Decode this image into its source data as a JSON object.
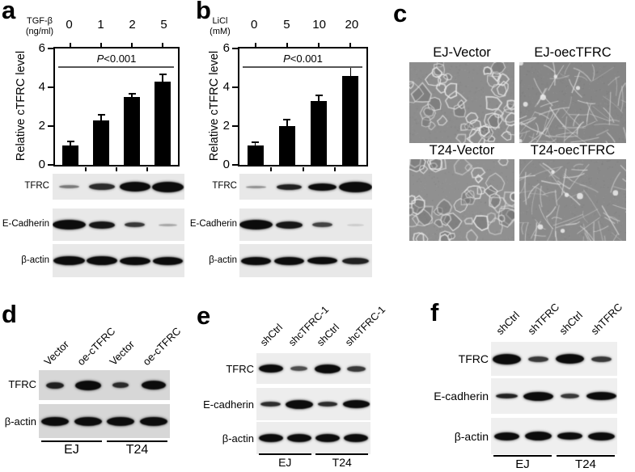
{
  "ink": "#000000",
  "figure_bg": "#ffffff",
  "significance_line_color": "#555555",
  "chart_data": [
    {
      "panel": "a",
      "type": "bar",
      "treatment": "TGF-β",
      "unit": "(ng/ml)",
      "categories": [
        "0",
        "1",
        "2",
        "5"
      ],
      "values": [
        1.0,
        2.3,
        3.5,
        4.3
      ],
      "errors": [
        0.22,
        0.3,
        0.15,
        0.35
      ],
      "title": "",
      "xlabel": "TGF-β (ng/ml)",
      "ylabel": "Relative cTFRC level",
      "ylim": [
        0,
        6
      ],
      "yticks": [
        0,
        2,
        4,
        6
      ],
      "annotation": "P<0.001",
      "bar_color": "#000000",
      "grid": false,
      "legend": "none"
    },
    {
      "panel": "b",
      "type": "bar",
      "treatment": "LiCl",
      "unit": "(mM)",
      "categories": [
        "0",
        "5",
        "10",
        "20"
      ],
      "values": [
        1.0,
        2.0,
        3.3,
        4.6
      ],
      "errors": [
        0.15,
        0.35,
        0.28,
        0.45
      ],
      "title": "",
      "xlabel": "LiCl (mM)",
      "ylabel": "Relative cTFRC level",
      "ylim": [
        0,
        6
      ],
      "yticks": [
        0,
        2,
        4,
        6
      ],
      "annotation": "P<0.001",
      "bar_color": "#000000",
      "grid": false,
      "legend": "none"
    }
  ],
  "panels": {
    "a": {
      "letter": "a",
      "strip_bg": "#e8e8e8",
      "blots": [
        {
          "label": "TFRC",
          "bands": [
            {
              "o": 0.5,
              "w": 0.62,
              "h": 4
            },
            {
              "o": 0.85,
              "w": 0.8,
              "h": 8
            },
            {
              "o": 1,
              "w": 0.95,
              "h": 12
            },
            {
              "o": 1,
              "w": 0.95,
              "h": 13
            }
          ]
        },
        {
          "label": "E-Cadherin",
          "bands": [
            {
              "o": 1,
              "w": 1.0,
              "h": 12
            },
            {
              "o": 0.95,
              "w": 0.8,
              "h": 9
            },
            {
              "o": 0.8,
              "w": 0.62,
              "h": 6
            },
            {
              "o": 0.3,
              "w": 0.55,
              "h": 3
            }
          ]
        },
        {
          "label": "β-actin",
          "bands": [
            {
              "o": 1,
              "w": 0.95,
              "h": 11
            },
            {
              "o": 1,
              "w": 0.92,
              "h": 11
            },
            {
              "o": 1,
              "w": 0.92,
              "h": 10
            },
            {
              "o": 1,
              "w": 0.92,
              "h": 10
            }
          ]
        }
      ]
    },
    "b": {
      "letter": "b",
      "strip_bg": "#e8e8e8",
      "blots": [
        {
          "label": "TFRC",
          "bands": [
            {
              "o": 0.4,
              "w": 0.6,
              "h": 3
            },
            {
              "o": 0.9,
              "w": 0.75,
              "h": 7
            },
            {
              "o": 1,
              "w": 0.85,
              "h": 9
            },
            {
              "o": 1,
              "w": 0.98,
              "h": 13
            }
          ]
        },
        {
          "label": "E-Cadherin",
          "bands": [
            {
              "o": 1,
              "w": 1.0,
              "h": 12
            },
            {
              "o": 0.95,
              "w": 0.8,
              "h": 9
            },
            {
              "o": 0.75,
              "w": 0.6,
              "h": 6
            },
            {
              "o": 0.12,
              "w": 0.5,
              "h": 3
            }
          ]
        },
        {
          "label": "β-actin",
          "bands": [
            {
              "o": 1,
              "w": 0.92,
              "h": 10
            },
            {
              "o": 1,
              "w": 0.9,
              "h": 10
            },
            {
              "o": 1,
              "w": 0.88,
              "h": 9
            },
            {
              "o": 0.9,
              "w": 0.8,
              "h": 8
            }
          ]
        }
      ]
    },
    "c": {
      "letter": "c",
      "micrographs": [
        {
          "label": "EJ-Vector",
          "morphology": "cobblestone",
          "bg": "#8d8d8d"
        },
        {
          "label": "EJ-oecTFRC",
          "morphology": "spindle",
          "bg": "#868686"
        },
        {
          "label": "T24-Vector",
          "morphology": "cobblestone",
          "bg": "#909090"
        },
        {
          "label": "T24-oecTFRC",
          "morphology": "spindle",
          "bg": "#8a8a8a"
        }
      ]
    },
    "d": {
      "letter": "d",
      "strip_bg": "#d7d7d7",
      "lanes": [
        "Vector",
        "oe-cTFRC",
        "Vector",
        "oe-cTFRC"
      ],
      "groups": [
        "EJ",
        "T24"
      ],
      "blots": [
        {
          "label": "TFRC",
          "bands": [
            {
              "o": 0.9,
              "w": 0.55,
              "h": 8
            },
            {
              "o": 1,
              "w": 0.8,
              "h": 12
            },
            {
              "o": 0.85,
              "w": 0.5,
              "h": 7
            },
            {
              "o": 1,
              "w": 0.75,
              "h": 11
            }
          ]
        },
        {
          "label": "β-actin",
          "bands": [
            {
              "o": 1,
              "w": 0.85,
              "h": 11
            },
            {
              "o": 1,
              "w": 0.85,
              "h": 11
            },
            {
              "o": 1,
              "w": 0.85,
              "h": 11
            },
            {
              "o": 1,
              "w": 0.85,
              "h": 11
            }
          ]
        }
      ]
    },
    "e": {
      "letter": "e",
      "strip_bg": "#ededed",
      "lanes": [
        "shCtrl",
        "shcTFRC-1",
        "shCtrl",
        "shcTFRC-1"
      ],
      "groups": [
        "EJ",
        "T24"
      ],
      "blots": [
        {
          "label": "TFRC",
          "bands": [
            {
              "o": 1,
              "w": 0.85,
              "h": 10
            },
            {
              "o": 0.7,
              "w": 0.6,
              "h": 6
            },
            {
              "o": 1,
              "w": 0.9,
              "h": 11
            },
            {
              "o": 0.8,
              "w": 0.65,
              "h": 7
            }
          ]
        },
        {
          "label": "E-cadherin",
          "bands": [
            {
              "o": 0.85,
              "w": 0.7,
              "h": 6
            },
            {
              "o": 1,
              "w": 0.95,
              "h": 11
            },
            {
              "o": 0.85,
              "w": 0.7,
              "h": 6
            },
            {
              "o": 1,
              "w": 0.95,
              "h": 10
            }
          ]
        },
        {
          "label": "β-actin",
          "bands": [
            {
              "o": 1,
              "w": 0.85,
              "h": 10
            },
            {
              "o": 1,
              "w": 0.85,
              "h": 10
            },
            {
              "o": 1,
              "w": 0.85,
              "h": 10
            },
            {
              "o": 1,
              "w": 0.85,
              "h": 10
            }
          ]
        }
      ]
    },
    "f": {
      "letter": "f",
      "strip_bg": "#efefef",
      "lanes": [
        "shCtrl",
        "shTFRC",
        "shCtrl",
        "shTFRC"
      ],
      "groups": [
        "EJ",
        "T24"
      ],
      "blots": [
        {
          "label": "TFRC",
          "bands": [
            {
              "o": 1,
              "w": 0.9,
              "h": 13
            },
            {
              "o": 0.8,
              "w": 0.65,
              "h": 7
            },
            {
              "o": 1,
              "w": 0.9,
              "h": 12
            },
            {
              "o": 0.8,
              "w": 0.65,
              "h": 7
            }
          ]
        },
        {
          "label": "E-cadherin",
          "bands": [
            {
              "o": 0.9,
              "w": 0.7,
              "h": 6
            },
            {
              "o": 1,
              "w": 0.95,
              "h": 11
            },
            {
              "o": 0.8,
              "w": 0.6,
              "h": 6
            },
            {
              "o": 1,
              "w": 0.95,
              "h": 10
            }
          ]
        },
        {
          "label": "β-actin",
          "bands": [
            {
              "o": 1,
              "w": 0.8,
              "h": 10
            },
            {
              "o": 1,
              "w": 0.85,
              "h": 11
            },
            {
              "o": 1,
              "w": 0.8,
              "h": 9
            },
            {
              "o": 1,
              "w": 0.85,
              "h": 10
            }
          ]
        }
      ]
    }
  }
}
